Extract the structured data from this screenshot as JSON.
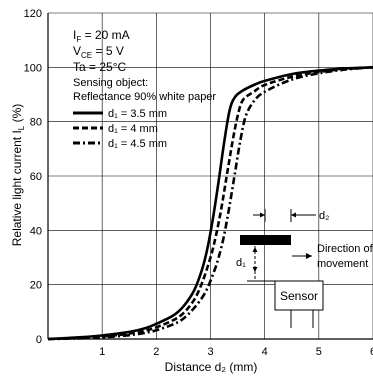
{
  "chart_data": {
    "type": "line",
    "xlabel": "Distance d₂ (mm)",
    "ylabel": "Relative light current I",
    "ylabel_sub": "L",
    "ylabel_unit": " (%)",
    "xlim": [
      0,
      6
    ],
    "ylim": [
      0,
      120
    ],
    "x_ticks": [
      "1",
      "2",
      "3",
      "4",
      "5",
      "6"
    ],
    "y_ticks": [
      "0",
      "20",
      "40",
      "60",
      "80",
      "100",
      "120"
    ],
    "grid": true,
    "conditions": [
      {
        "main": "I",
        "sub": "F",
        "rest": " = 20 mA"
      },
      {
        "main": "V",
        "sub": "CE",
        "rest": " = 5 V"
      },
      {
        "main": "Ta = 25°C",
        "sub": "",
        "rest": ""
      }
    ],
    "sensing_object_label": "Sensing object:",
    "sensing_object_value": "Reflectance 90% white paper",
    "series": [
      {
        "name": "d₁ = 3.5 mm",
        "dash": "solid",
        "points": [
          [
            0,
            0
          ],
          [
            0.5,
            0.5
          ],
          [
            1.0,
            1.3
          ],
          [
            1.5,
            2.6
          ],
          [
            1.8,
            4.0
          ],
          [
            2.0,
            5.6
          ],
          [
            2.3,
            8.5
          ],
          [
            2.5,
            12
          ],
          [
            2.7,
            18
          ],
          [
            2.85,
            26
          ],
          [
            2.95,
            34
          ],
          [
            3.05,
            45
          ],
          [
            3.15,
            58
          ],
          [
            3.25,
            72
          ],
          [
            3.35,
            84
          ],
          [
            3.45,
            89
          ],
          [
            3.6,
            91.5
          ],
          [
            3.8,
            93.5
          ],
          [
            4.0,
            95
          ],
          [
            4.5,
            97.5
          ],
          [
            5.0,
            98.8
          ],
          [
            5.5,
            99.6
          ],
          [
            6.0,
            100
          ]
        ]
      },
      {
        "name": "d₁ = 4 mm",
        "dash": "dashed",
        "points": [
          [
            0,
            0
          ],
          [
            0.5,
            0.3
          ],
          [
            1.0,
            0.9
          ],
          [
            1.5,
            2.0
          ],
          [
            1.8,
            3.1
          ],
          [
            2.0,
            4.3
          ],
          [
            2.3,
            6.8
          ],
          [
            2.5,
            9.5
          ],
          [
            2.7,
            14.5
          ],
          [
            2.85,
            21
          ],
          [
            3.0,
            30
          ],
          [
            3.1,
            38
          ],
          [
            3.2,
            48
          ],
          [
            3.3,
            60
          ],
          [
            3.4,
            72
          ],
          [
            3.5,
            82
          ],
          [
            3.6,
            88
          ],
          [
            3.8,
            91
          ],
          [
            4.0,
            93.5
          ],
          [
            4.5,
            96.5
          ],
          [
            5.0,
            98.3
          ],
          [
            5.5,
            99.4
          ],
          [
            6.0,
            100
          ]
        ]
      },
      {
        "name": "d₁ = 4.5 mm",
        "dash": "dashdot",
        "points": [
          [
            0,
            0
          ],
          [
            0.5,
            0.2
          ],
          [
            1.0,
            0.6
          ],
          [
            1.5,
            1.4
          ],
          [
            1.8,
            2.3
          ],
          [
            2.0,
            3.2
          ],
          [
            2.3,
            5.3
          ],
          [
            2.5,
            7.5
          ],
          [
            2.7,
            11.5
          ],
          [
            2.9,
            17
          ],
          [
            3.05,
            24
          ],
          [
            3.15,
            30
          ],
          [
            3.25,
            38
          ],
          [
            3.35,
            49
          ],
          [
            3.45,
            61
          ],
          [
            3.55,
            73
          ],
          [
            3.65,
            82
          ],
          [
            3.8,
            87.5
          ],
          [
            4.0,
            91
          ],
          [
            4.5,
            95.5
          ],
          [
            5.0,
            97.8
          ],
          [
            5.5,
            99.2
          ],
          [
            6.0,
            100
          ]
        ]
      }
    ],
    "inset": {
      "sensor_label": "Sensor",
      "d1_label": "d₁",
      "d2_label": "d₂",
      "direction_line1": "Direction of",
      "direction_line2": "movement"
    }
  }
}
